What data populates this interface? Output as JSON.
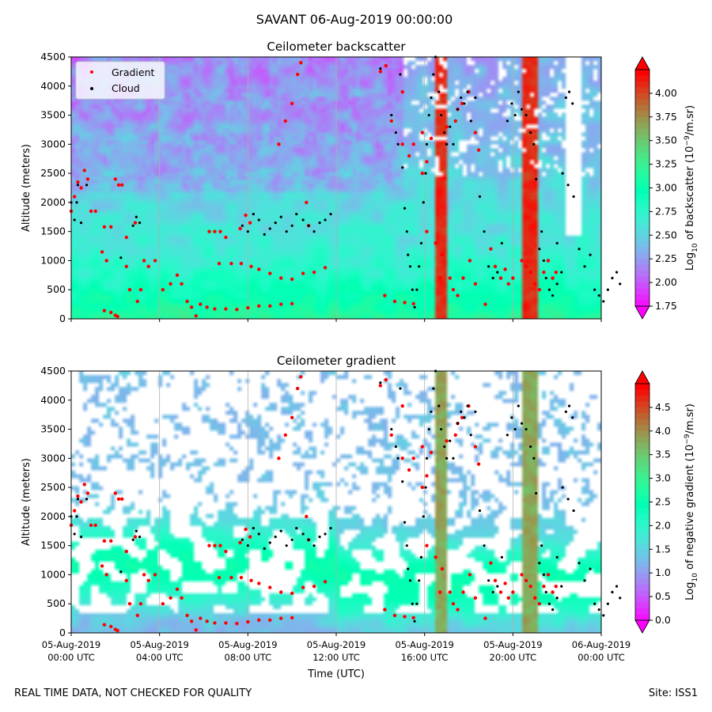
{
  "figure": {
    "suptitle": "SAVANT 06-Aug-2019 00:00:00",
    "footer_left": "REAL TIME DATA, NOT CHECKED FOR QUALITY",
    "footer_right": "Site: ISS1"
  },
  "colors": {
    "gradient_marker": "#ff0000",
    "cloud_marker": "#000000",
    "colormap": "rainbow"
  },
  "chart_data": [
    {
      "type": "heatmap",
      "title": "Ceilometer backscatter",
      "ylabel": "Altitude (meters)",
      "xlabel": "",
      "ylim": [
        0,
        4500
      ],
      "yticks": [
        "0",
        "500",
        "1000",
        "1500",
        "2000",
        "2500",
        "3000",
        "3500",
        "4000",
        "4500"
      ],
      "xticks": [],
      "grid": "vertical lines every 4 hours",
      "legend": {
        "placement": "top-left",
        "entries": [
          "Gradient",
          "Cloud"
        ]
      },
      "colorbar": {
        "label_base": "Log",
        "label_sub": "10",
        "label_mid": " of backscatter (10",
        "label_sup": "−9",
        "label_end": "/m.sr)",
        "range": [
          1.75,
          4.25
        ],
        "ticks": [
          "1.75",
          "2.00",
          "2.25",
          "2.50",
          "2.75",
          "3.00",
          "3.25",
          "3.50",
          "3.75",
          "4.00"
        ]
      },
      "gradient_series": [
        [
          0.0,
          1850
        ],
        [
          0.3,
          2100
        ],
        [
          0.6,
          2350
        ],
        [
          0.9,
          2250
        ],
        [
          1.2,
          2550
        ],
        [
          1.5,
          2400
        ],
        [
          1.8,
          1850
        ],
        [
          2.2,
          1850
        ],
        [
          3.0,
          140
        ],
        [
          3.6,
          110
        ],
        [
          4.0,
          60
        ],
        [
          4.2,
          40
        ],
        [
          3.0,
          1580
        ],
        [
          3.6,
          1580
        ],
        [
          2.8,
          1150
        ],
        [
          3.2,
          1000
        ],
        [
          4.0,
          2400
        ],
        [
          4.3,
          2300
        ],
        [
          4.6,
          2300
        ],
        [
          5.0,
          1400
        ],
        [
          5.8,
          1650
        ],
        [
          5.0,
          900
        ],
        [
          5.3,
          500
        ],
        [
          6.0,
          300
        ],
        [
          6.3,
          500
        ],
        [
          6.6,
          1000
        ],
        [
          7.0,
          900
        ],
        [
          7.6,
          1000
        ],
        [
          8.3,
          500
        ],
        [
          9.0,
          600
        ],
        [
          9.6,
          750
        ],
        [
          10.0,
          600
        ],
        [
          10.5,
          300
        ],
        [
          10.9,
          200
        ],
        [
          11.3,
          50
        ],
        [
          11.7,
          250
        ],
        [
          12.3,
          200
        ],
        [
          13.0,
          170
        ],
        [
          14.0,
          170
        ],
        [
          15.0,
          160
        ],
        [
          16.0,
          190
        ],
        [
          17.0,
          220
        ],
        [
          18.0,
          220
        ],
        [
          19.0,
          250
        ],
        [
          20.0,
          260
        ],
        [
          12.5,
          1500
        ],
        [
          13.0,
          1500
        ],
        [
          13.5,
          1500
        ],
        [
          14.0,
          1400
        ],
        [
          15.3,
          1550
        ],
        [
          15.8,
          1780
        ],
        [
          16.2,
          1650
        ],
        [
          13.4,
          950
        ],
        [
          14.5,
          950
        ],
        [
          15.4,
          950
        ],
        [
          16.3,
          900
        ],
        [
          17.0,
          850
        ],
        [
          18.0,
          780
        ],
        [
          19.0,
          700
        ],
        [
          20.0,
          680
        ],
        [
          21.0,
          780
        ],
        [
          22.0,
          800
        ],
        [
          23.0,
          880
        ],
        [
          21.3,
          2000
        ],
        [
          18.8,
          3000
        ],
        [
          19.4,
          3400
        ],
        [
          20.0,
          3700
        ],
        [
          20.8,
          4400
        ],
        [
          20.5,
          4200
        ],
        [
          21.5,
          1600
        ],
        [
          28.0,
          4250
        ],
        [
          28.5,
          4350
        ],
        [
          30.0,
          3900
        ],
        [
          29.0,
          3400
        ],
        [
          30.0,
          3000
        ],
        [
          30.6,
          2800
        ],
        [
          31.0,
          3000
        ],
        [
          31.8,
          3200
        ],
        [
          32.6,
          3100
        ],
        [
          32.2,
          2700
        ],
        [
          31.8,
          2500
        ],
        [
          28.4,
          400
        ],
        [
          29.3,
          300
        ],
        [
          30.2,
          280
        ],
        [
          31.0,
          260
        ],
        [
          32.2,
          1500
        ],
        [
          33.0,
          1300
        ],
        [
          33.4,
          700
        ],
        [
          33.6,
          1100
        ],
        [
          34.3,
          700
        ],
        [
          34.6,
          500
        ],
        [
          35.0,
          400
        ],
        [
          35.5,
          700
        ],
        [
          36.1,
          1000
        ],
        [
          36.6,
          600
        ],
        [
          37.5,
          250
        ],
        [
          38.0,
          1200
        ],
        [
          38.4,
          900
        ],
        [
          38.9,
          700
        ],
        [
          39.3,
          850
        ],
        [
          39.6,
          600
        ],
        [
          40.0,
          700
        ],
        [
          40.8,
          1000
        ],
        [
          41.2,
          900
        ],
        [
          41.6,
          800
        ],
        [
          42.0,
          600
        ],
        [
          42.4,
          500
        ],
        [
          42.8,
          800
        ],
        [
          43.2,
          1000
        ],
        [
          43.6,
          700
        ],
        [
          43.9,
          800
        ],
        [
          35.0,
          3600
        ],
        [
          35.4,
          3700
        ],
        [
          36.0,
          3900
        ],
        [
          34.0,
          3300
        ],
        [
          34.8,
          3400
        ],
        [
          36.6,
          3200
        ],
        [
          36.9,
          2900
        ]
      ],
      "cloud_series": [
        [
          0.0,
          2000
        ],
        [
          0.3,
          1700
        ],
        [
          0.5,
          2000
        ],
        [
          0.6,
          2300
        ],
        [
          0.9,
          1650
        ],
        [
          1.4,
          2300
        ],
        [
          5.6,
          1600
        ],
        [
          5.9,
          1750
        ],
        [
          6.2,
          1650
        ],
        [
          4.5,
          1050
        ],
        [
          15.5,
          1600
        ],
        [
          16.0,
          1500
        ],
        [
          16.5,
          1800
        ],
        [
          17.0,
          1700
        ],
        [
          17.5,
          1450
        ],
        [
          18.0,
          1550
        ],
        [
          18.5,
          1650
        ],
        [
          19.0,
          1750
        ],
        [
          19.5,
          1500
        ],
        [
          20.0,
          1600
        ],
        [
          20.4,
          1800
        ],
        [
          21.0,
          1700
        ],
        [
          21.5,
          1600
        ],
        [
          22.0,
          1500
        ],
        [
          22.5,
          1650
        ],
        [
          23.0,
          1700
        ],
        [
          23.5,
          1800
        ],
        [
          28.0,
          4300
        ],
        [
          29.8,
          4200
        ],
        [
          29.0,
          3500
        ],
        [
          29.4,
          3200
        ],
        [
          29.6,
          3000
        ],
        [
          30.0,
          2600
        ],
        [
          30.2,
          1900
        ],
        [
          30.4,
          1500
        ],
        [
          30.5,
          1100
        ],
        [
          30.7,
          900
        ],
        [
          30.9,
          500
        ],
        [
          31.1,
          200
        ],
        [
          31.3,
          500
        ],
        [
          31.5,
          900
        ],
        [
          31.7,
          1300
        ],
        [
          31.9,
          2000
        ],
        [
          32.1,
          2500
        ],
        [
          32.2,
          3000
        ],
        [
          32.4,
          3500
        ],
        [
          32.6,
          3800
        ],
        [
          32.8,
          4200
        ],
        [
          33.0,
          4500
        ],
        [
          33.3,
          3900
        ],
        [
          33.5,
          3500
        ],
        [
          33.8,
          3200
        ],
        [
          34.0,
          3000
        ],
        [
          34.3,
          3300
        ],
        [
          34.6,
          3000
        ],
        [
          35.0,
          3600
        ],
        [
          35.3,
          3800
        ],
        [
          35.6,
          3700
        ],
        [
          35.9,
          3900
        ],
        [
          36.2,
          3400
        ],
        [
          36.6,
          3800
        ],
        [
          37.0,
          2100
        ],
        [
          37.4,
          1500
        ],
        [
          37.8,
          900
        ],
        [
          38.2,
          700
        ],
        [
          38.6,
          800
        ],
        [
          39.0,
          1300
        ],
        [
          39.5,
          3400
        ],
        [
          39.9,
          3700
        ],
        [
          40.2,
          3500
        ],
        [
          40.5,
          3900
        ],
        [
          40.8,
          3600
        ],
        [
          41.2,
          3500
        ],
        [
          41.6,
          3200
        ],
        [
          41.9,
          3000
        ],
        [
          42.1,
          2400
        ],
        [
          42.4,
          1200
        ],
        [
          42.6,
          1500
        ],
        [
          42.8,
          1000
        ],
        [
          43.0,
          700
        ],
        [
          43.3,
          500
        ],
        [
          43.6,
          400
        ],
        [
          44.0,
          600
        ],
        [
          44.4,
          800
        ],
        [
          44.8,
          3800
        ],
        [
          45.1,
          3900
        ],
        [
          45.4,
          3700
        ],
        [
          44.5,
          2500
        ],
        [
          45.0,
          2300
        ],
        [
          45.5,
          2100
        ],
        [
          44.0,
          1300
        ],
        [
          46.0,
          1200
        ],
        [
          46.5,
          900
        ],
        [
          47.0,
          1100
        ],
        [
          47.4,
          500
        ],
        [
          47.8,
          400
        ],
        [
          48.2,
          300
        ],
        [
          48.6,
          500
        ],
        [
          49.0,
          700
        ],
        [
          49.4,
          800
        ],
        [
          49.7,
          600
        ]
      ]
    },
    {
      "type": "heatmap",
      "title": "Ceilometer gradient",
      "ylabel": "Altitude (meters)",
      "xlabel": "Time (UTC)",
      "ylim": [
        0,
        4500
      ],
      "yticks": [
        "0",
        "500",
        "1000",
        "1500",
        "2000",
        "2500",
        "3000",
        "3500",
        "4000",
        "4500"
      ],
      "xticks": [
        [
          "05-Aug-2019",
          "00:00 UTC"
        ],
        [
          "05-Aug-2019",
          "04:00 UTC"
        ],
        [
          "05-Aug-2019",
          "08:00 UTC"
        ],
        [
          "05-Aug-2019",
          "12:00 UTC"
        ],
        [
          "05-Aug-2019",
          "16:00 UTC"
        ],
        [
          "05-Aug-2019",
          "20:00 UTC"
        ],
        [
          "06-Aug-2019",
          "00:00 UTC"
        ]
      ],
      "grid": "vertical lines every 4 hours",
      "colorbar": {
        "label_base": "Log",
        "label_sub": "10",
        "label_mid": " of negative gradient (10",
        "label_sup": "−9",
        "label_end": "/m.sr)",
        "range": [
          0.0,
          5.0
        ],
        "ticks": [
          "0.0",
          "0.5",
          "1.0",
          "1.5",
          "2.0",
          "2.5",
          "3.0",
          "3.5",
          "4.0",
          "4.5"
        ]
      }
    }
  ]
}
